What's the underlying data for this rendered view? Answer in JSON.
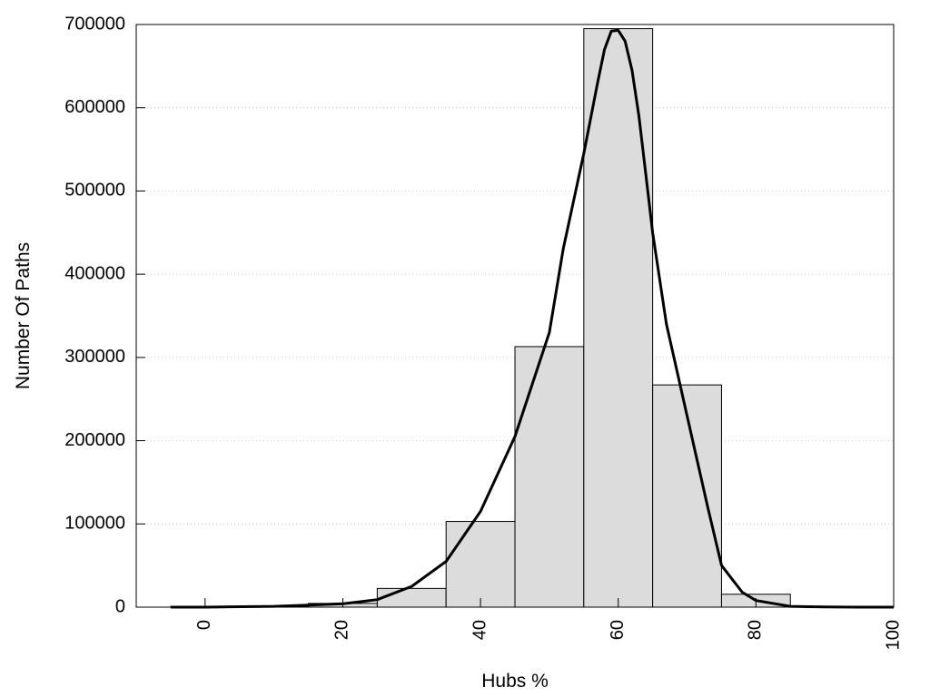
{
  "chart_data": {
    "type": "bar",
    "subtype": "histogram-with-curve",
    "title": "",
    "xlabel": "Hubs %",
    "ylabel": "Number Of Paths",
    "xlim": [
      -10,
      100
    ],
    "ylim": [
      0,
      700000
    ],
    "x_ticks": [
      "0",
      "20",
      "40",
      "60",
      "80",
      "100"
    ],
    "y_ticks": [
      "0",
      "100000",
      "200000",
      "300000",
      "400000",
      "500000",
      "600000",
      "700000"
    ],
    "bin_width": 10,
    "bins": [
      {
        "x": 0,
        "value": 500
      },
      {
        "x": 10,
        "value": 1000
      },
      {
        "x": 20,
        "value": 4500
      },
      {
        "x": 30,
        "value": 22500
      },
      {
        "x": 40,
        "value": 103000
      },
      {
        "x": 50,
        "value": 313000
      },
      {
        "x": 60,
        "value": 695000
      },
      {
        "x": 70,
        "value": 267000
      },
      {
        "x": 80,
        "value": 15500
      },
      {
        "x": 90,
        "value": 1000
      },
      {
        "x": 100,
        "value": 500
      }
    ],
    "curve": {
      "x": [
        -5,
        0,
        10,
        15,
        20,
        25,
        30,
        35,
        40,
        45,
        50,
        52,
        55,
        57,
        58,
        59,
        60,
        61,
        62,
        63,
        64,
        65,
        67,
        70,
        73,
        75,
        78,
        80,
        85,
        90,
        95,
        100
      ],
      "y": [
        0,
        0,
        1000,
        2500,
        4000,
        9000,
        25000,
        55000,
        115000,
        205000,
        330000,
        430000,
        545000,
        630000,
        670000,
        692000,
        693000,
        680000,
        645000,
        590000,
        520000,
        450000,
        340000,
        230000,
        120000,
        50000,
        18000,
        8000,
        1000,
        200,
        0,
        0
      ]
    },
    "colors": {
      "bar_fill": "#dcdcdc",
      "bar_stroke": "#000000",
      "curve": "#000000",
      "grid": "#c8c8c8"
    },
    "grid": "horizontal-dotted",
    "legend": "none"
  }
}
